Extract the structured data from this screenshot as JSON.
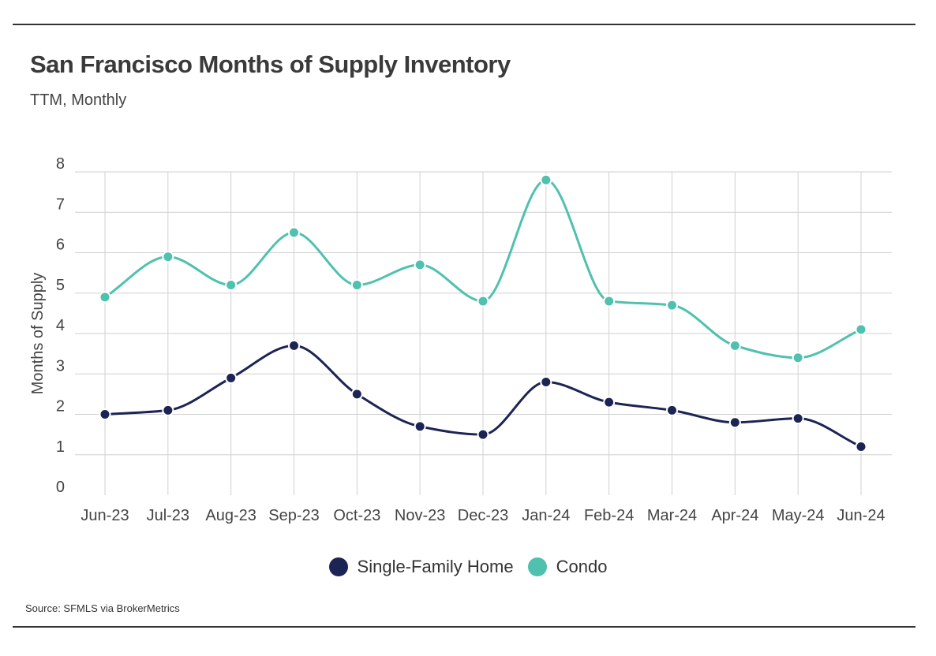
{
  "header": {
    "title": "San Francisco Months of Supply Inventory",
    "subtitle": "TTM, Monthly"
  },
  "source": "Source:  SFMLS via BrokerMetrics",
  "colors": {
    "single_family": "#1c2454",
    "condo": "#4fc1ae",
    "grid": "#d0d0d0"
  },
  "chart_data": {
    "type": "line",
    "title": "San Francisco Months of Supply Inventory",
    "subtitle": "TTM, Monthly",
    "xlabel": "",
    "ylabel": "Months of Supply",
    "ylim": [
      0,
      8
    ],
    "yticks": [
      0,
      1,
      2,
      3,
      4,
      5,
      6,
      7,
      8
    ],
    "grid": true,
    "legend_position": "bottom-center",
    "categories": [
      "Jun-23",
      "Jul-23",
      "Aug-23",
      "Sep-23",
      "Oct-23",
      "Nov-23",
      "Dec-23",
      "Jan-24",
      "Feb-24",
      "Mar-24",
      "Apr-24",
      "May-24",
      "Jun-24"
    ],
    "series": [
      {
        "name": "Single-Family Home",
        "color": "#1c2454",
        "values": [
          2.0,
          2.1,
          2.9,
          3.7,
          2.5,
          1.7,
          1.5,
          2.8,
          2.3,
          2.1,
          1.8,
          1.9,
          1.2
        ]
      },
      {
        "name": "Condo",
        "color": "#4fc1ae",
        "values": [
          4.9,
          5.9,
          5.2,
          6.5,
          5.2,
          5.7,
          4.8,
          7.8,
          4.8,
          4.7,
          3.7,
          3.4,
          4.1
        ]
      }
    ]
  }
}
